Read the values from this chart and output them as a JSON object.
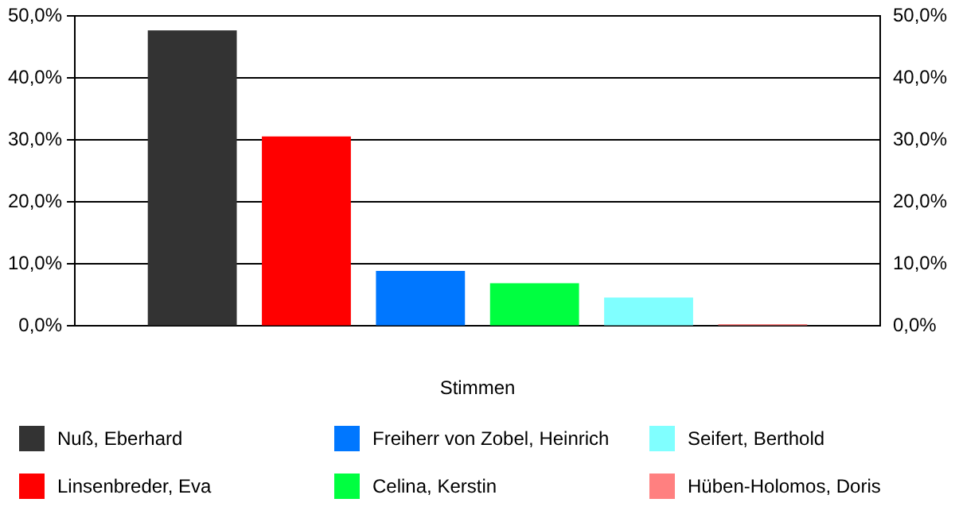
{
  "chart_data": {
    "type": "bar",
    "xlabel": "Stimmen",
    "categories": [
      null
    ],
    "series": [
      {
        "name": "Nuß, Eberhard",
        "color": "#333333",
        "values": [
          47.7
        ]
      },
      {
        "name": "Linsenbreder, Eva",
        "color": "#ff0000",
        "values": [
          30.6
        ]
      },
      {
        "name": "Freiherr von Zobel, Heinrich",
        "color": "#0077ff",
        "values": [
          8.9
        ]
      },
      {
        "name": "Celina, Kerstin",
        "color": "#00ff40",
        "values": [
          6.9
        ]
      },
      {
        "name": "Seifert, Berthold",
        "color": "#80ffff",
        "values": [
          4.6
        ]
      },
      {
        "name": "Hüben-Holomos, Doris",
        "color": "#ff8080",
        "values": [
          0.3
        ]
      }
    ],
    "ylim": [
      0,
      50
    ],
    "yticks": [
      {
        "value": 0,
        "label": "0,0%"
      },
      {
        "value": 10,
        "label": "10,0%"
      },
      {
        "value": 20,
        "label": "20,0%"
      },
      {
        "value": 30,
        "label": "30,0%"
      },
      {
        "value": 40,
        "label": "40,0%"
      },
      {
        "value": 50,
        "label": "50,0%"
      }
    ],
    "y2lim": [
      0,
      50
    ],
    "y2ticks": [
      {
        "value": 0,
        "label": "0,0%"
      },
      {
        "value": 10,
        "label": "10,0%"
      },
      {
        "value": 20,
        "label": "20,0%"
      },
      {
        "value": 30,
        "label": "30,0%"
      },
      {
        "value": 40,
        "label": "40,0%"
      },
      {
        "value": 50,
        "label": "50,0%"
      }
    ],
    "grid": "y",
    "legend": "bottom"
  }
}
